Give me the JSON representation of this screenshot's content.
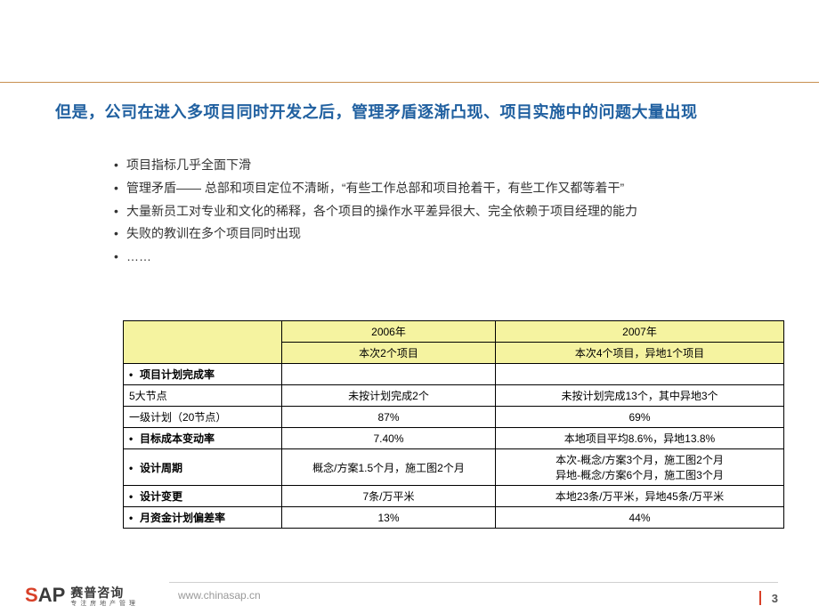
{
  "colors": {
    "title": "#2060a0",
    "rule_top": "#c89050",
    "accent": "#d84028",
    "table_header_bg": "#f5f3a0",
    "table_border": "#000000",
    "body_text": "#333333",
    "url_text": "#999999",
    "footer_rule": "#d0d0d0"
  },
  "title": "但是，公司在进入多项目同时开发之后，管理矛盾逐渐凸现、项目实施中的问题大量出现",
  "bullets": [
    "项目指标几乎全面下滑",
    "管理矛盾—— 总部和项目定位不清晰，“有些工作总部和项目抢着干，有些工作又都等着干”",
    "大量新员工对专业和文化的稀释，各个项目的操作水平差异很大、完全依赖于项目经理的能力",
    "失败的教训在多个项目同时出现",
    "……"
  ],
  "table": {
    "header_years": [
      "2006年",
      "2007年"
    ],
    "header_subs": [
      "本次2个项目",
      "本次4个项目，异地1个项目"
    ],
    "rows": [
      {
        "label": "项目计划完成率",
        "bold": true,
        "bullet": true,
        "v2006": "",
        "v2007": ""
      },
      {
        "label": "5大节点",
        "bold": false,
        "bullet": false,
        "indent": true,
        "v2006": "未按计划完成2个",
        "v2007": "未按计划完成13个，其中异地3个"
      },
      {
        "label": "一级计划（20节点）",
        "bold": false,
        "bullet": false,
        "indent": true,
        "v2006": "87%",
        "v2007": "69%"
      },
      {
        "label": "目标成本变动率",
        "bold": true,
        "bullet": true,
        "v2006": "7.40%",
        "v2007": "本地项目平均8.6%，异地13.8%"
      },
      {
        "label": "设计周期",
        "bold": true,
        "bullet": true,
        "v2006": "概念/方案1.5个月，施工图2个月",
        "v2007": "本次-概念/方案3个月，施工图2个月\n异地-概念/方案6个月，施工图3个月"
      },
      {
        "label": "设计变更",
        "bold": true,
        "bullet": true,
        "v2006": "7条/万平米",
        "v2007": "本地23条/万平米，异地45条/万平米"
      },
      {
        "label": "月资金计划偏差率",
        "bold": true,
        "bullet": true,
        "v2006": "13%",
        "v2007": "44%"
      }
    ]
  },
  "footer": {
    "logo_latin": "SAP",
    "logo_cn_top": "赛普咨询",
    "logo_cn_bottom": "专 注 房 地 产 管 理",
    "url": "www.chinasap.cn",
    "page": "3"
  }
}
